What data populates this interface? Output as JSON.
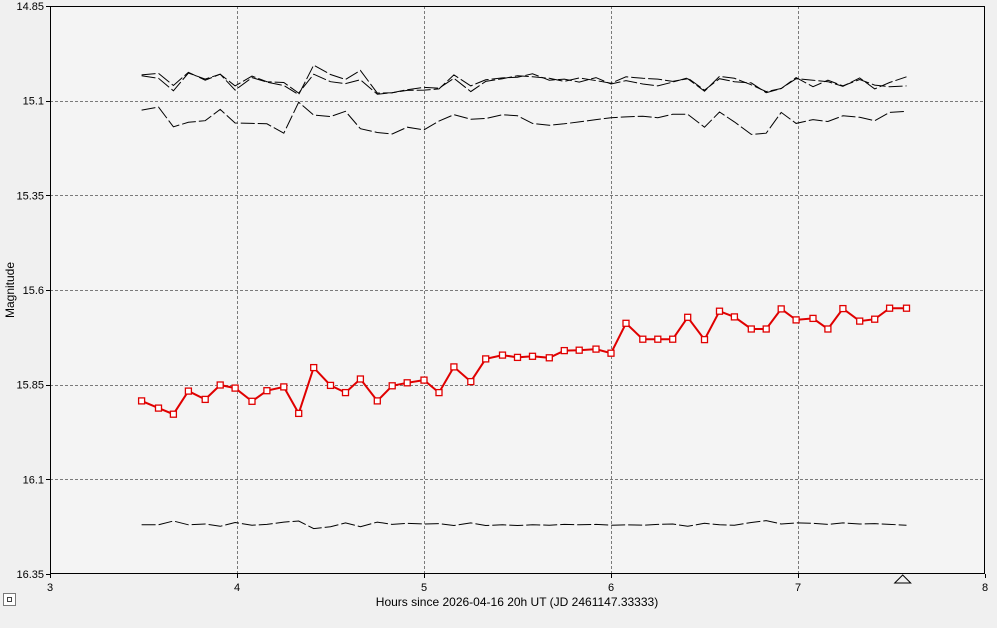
{
  "chart_data": {
    "type": "line",
    "xlabel": "Hours since 2026-04-16 20h UT (JD 2461147.33333)",
    "ylabel": "Magnitude",
    "xlim": [
      3,
      8
    ],
    "ylim": [
      14.85,
      16.35
    ],
    "y_inverted": true,
    "grid": true,
    "x_ticks": [
      "3",
      "4",
      "5",
      "6",
      "7",
      "8"
    ],
    "y_ticks": [
      "14.85",
      "15.1",
      "15.35",
      "15.6",
      "15.85",
      "16.1",
      "16.35"
    ],
    "x": [
      3.49,
      3.58,
      3.66,
      3.74,
      3.83,
      3.91,
      3.99,
      4.08,
      4.16,
      4.25,
      4.33,
      4.41,
      4.5,
      4.58,
      4.66,
      4.75,
      4.83,
      4.91,
      5.0,
      5.08,
      5.16,
      5.25,
      5.33,
      5.42,
      5.5,
      5.58,
      5.67,
      5.75,
      5.83,
      5.92,
      6.0,
      6.08,
      6.17,
      6.25,
      6.33,
      6.41,
      6.5,
      6.58,
      6.66,
      6.75,
      6.83,
      6.91,
      6.99,
      7.08,
      7.16,
      7.24,
      7.33,
      7.41,
      7.49,
      7.58
    ],
    "series": [
      {
        "role": "target",
        "color": "#e00000",
        "marker": "square",
        "values": [
          15.893,
          15.912,
          15.928,
          15.867,
          15.889,
          15.851,
          15.859,
          15.894,
          15.866,
          15.856,
          15.926,
          15.805,
          15.852,
          15.871,
          15.835,
          15.893,
          15.853,
          15.845,
          15.838,
          15.871,
          15.803,
          15.842,
          15.782,
          15.772,
          15.778,
          15.775,
          15.779,
          15.76,
          15.759,
          15.756,
          15.767,
          15.688,
          15.73,
          15.73,
          15.73,
          15.672,
          15.731,
          15.656,
          15.671,
          15.703,
          15.703,
          15.65,
          15.679,
          15.675,
          15.703,
          15.649,
          15.682,
          15.677,
          15.648,
          15.648
        ]
      },
      {
        "role": "comparison",
        "color": "#000000",
        "values": [
          15.034,
          15.041,
          15.074,
          15.027,
          15.043,
          15.03,
          15.072,
          15.039,
          15.051,
          15.06,
          15.084,
          15.006,
          15.031,
          15.044,
          15.02,
          15.08,
          15.079,
          15.073,
          15.072,
          15.069,
          15.032,
          15.061,
          15.045,
          15.04,
          15.038,
          15.029,
          15.046,
          15.043,
          15.051,
          15.039,
          15.056,
          15.047,
          15.056,
          15.061,
          15.051,
          15.04,
          15.072,
          15.042,
          15.05,
          15.053,
          15.079,
          15.068,
          15.039,
          15.063,
          15.046,
          15.061,
          15.044,
          15.059,
          15.063,
          15.061
        ]
      },
      {
        "role": "comparison",
        "color": "#000000",
        "values": [
          15.032,
          15.028,
          15.06,
          15.025,
          15.046,
          15.03,
          15.061,
          15.035,
          15.05,
          15.052,
          15.08,
          15.03,
          15.05,
          15.055,
          15.045,
          15.083,
          15.079,
          15.071,
          15.065,
          15.067,
          15.041,
          15.076,
          15.049,
          15.042,
          15.034,
          15.037,
          15.041,
          15.049,
          15.04,
          15.047,
          15.054,
          15.037,
          15.041,
          15.043,
          15.049,
          15.042,
          15.075,
          15.036,
          15.041,
          15.058,
          15.076,
          15.068,
          15.042,
          15.046,
          15.05,
          15.062,
          15.04,
          15.069,
          15.052,
          15.037
        ]
      },
      {
        "role": "check",
        "color": "#000000",
        "values": [
          15.125,
          15.117,
          15.169,
          15.157,
          15.153,
          15.123,
          15.159,
          15.16,
          15.161,
          15.186,
          15.104,
          15.138,
          15.142,
          15.128,
          15.174,
          15.184,
          15.188,
          15.17,
          15.177,
          15.154,
          15.137,
          15.149,
          15.147,
          15.137,
          15.14,
          15.16,
          15.165,
          15.161,
          15.156,
          15.15,
          15.145,
          15.143,
          15.141,
          15.145,
          15.136,
          15.136,
          15.17,
          15.13,
          15.156,
          15.189,
          15.186,
          15.131,
          15.16,
          15.15,
          15.155,
          15.14,
          15.144,
          15.153,
          15.131,
          15.128
        ]
      },
      {
        "role": "check",
        "color": "#000000",
        "values": [
          16.22,
          16.22,
          16.21,
          16.22,
          16.218,
          16.224,
          16.214,
          16.221,
          16.219,
          16.213,
          16.21,
          16.23,
          16.225,
          16.215,
          16.225,
          16.213,
          16.219,
          16.216,
          16.218,
          16.217,
          16.222,
          16.215,
          16.222,
          16.22,
          16.222,
          16.22,
          16.221,
          16.219,
          16.22,
          16.219,
          16.221,
          16.22,
          16.221,
          16.219,
          16.218,
          16.224,
          16.216,
          16.22,
          16.221,
          16.214,
          16.209,
          16.218,
          16.215,
          16.216,
          16.219,
          16.215,
          16.218,
          16.217,
          16.219,
          16.221
        ]
      }
    ],
    "annotations": [
      "triangle marker on x-axis at 7.56"
    ]
  }
}
